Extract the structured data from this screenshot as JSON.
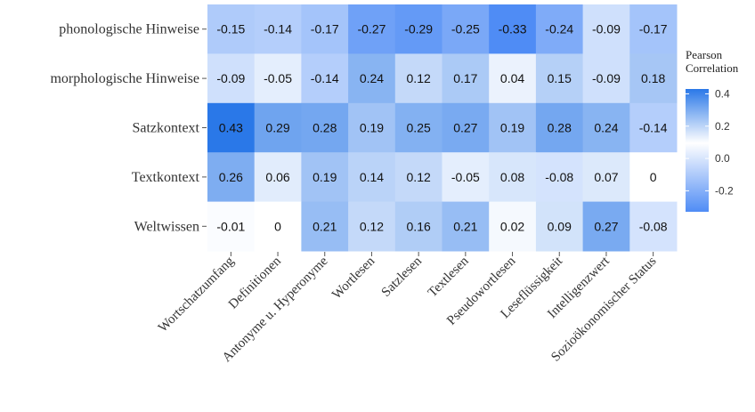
{
  "chart_data": {
    "type": "heatmap",
    "rows": [
      "phonologische Hinweise",
      "morphologische Hinweise",
      "Satzkontext",
      "Textkontext",
      "Weltwissen"
    ],
    "columns": [
      "Wortschatzumfang",
      "Definitionen",
      "Antonyme u. Hyperonyme",
      "Wortlesen",
      "Satzlesen",
      "Textlesen",
      "Pseudowortlesen",
      "Leseflüssigkeit",
      "Intelligenzwert",
      "Sozioökonomischer Status"
    ],
    "values": [
      [
        -0.15,
        -0.14,
        -0.17,
        -0.27,
        -0.29,
        -0.25,
        -0.33,
        -0.24,
        -0.09,
        -0.17
      ],
      [
        -0.09,
        -0.05,
        -0.14,
        0.24,
        0.12,
        0.17,
        0.04,
        0.15,
        -0.09,
        0.18
      ],
      [
        0.43,
        0.29,
        0.28,
        0.19,
        0.25,
        0.27,
        0.19,
        0.28,
        0.24,
        -0.14
      ],
      [
        0.26,
        0.06,
        0.19,
        0.14,
        0.12,
        -0.05,
        0.08,
        -0.08,
        0.07,
        0
      ],
      [
        -0.01,
        0,
        0.21,
        0.12,
        0.16,
        0.21,
        0.02,
        0.09,
        0.27,
        -0.08
      ]
    ],
    "legend": {
      "title": "Pearson\nCorrelation",
      "ticks": [
        0.4,
        0.2,
        0.0,
        -0.2
      ],
      "tick_labels": [
        "0.4",
        "0.2",
        "0.0",
        "-0.2"
      ],
      "range": [
        -0.33,
        0.43
      ],
      "placement": "right"
    },
    "colors": {
      "positive": "#2a78e8",
      "zero": "#ffffff",
      "negative": "#4f8cf5"
    },
    "grid": false
  }
}
